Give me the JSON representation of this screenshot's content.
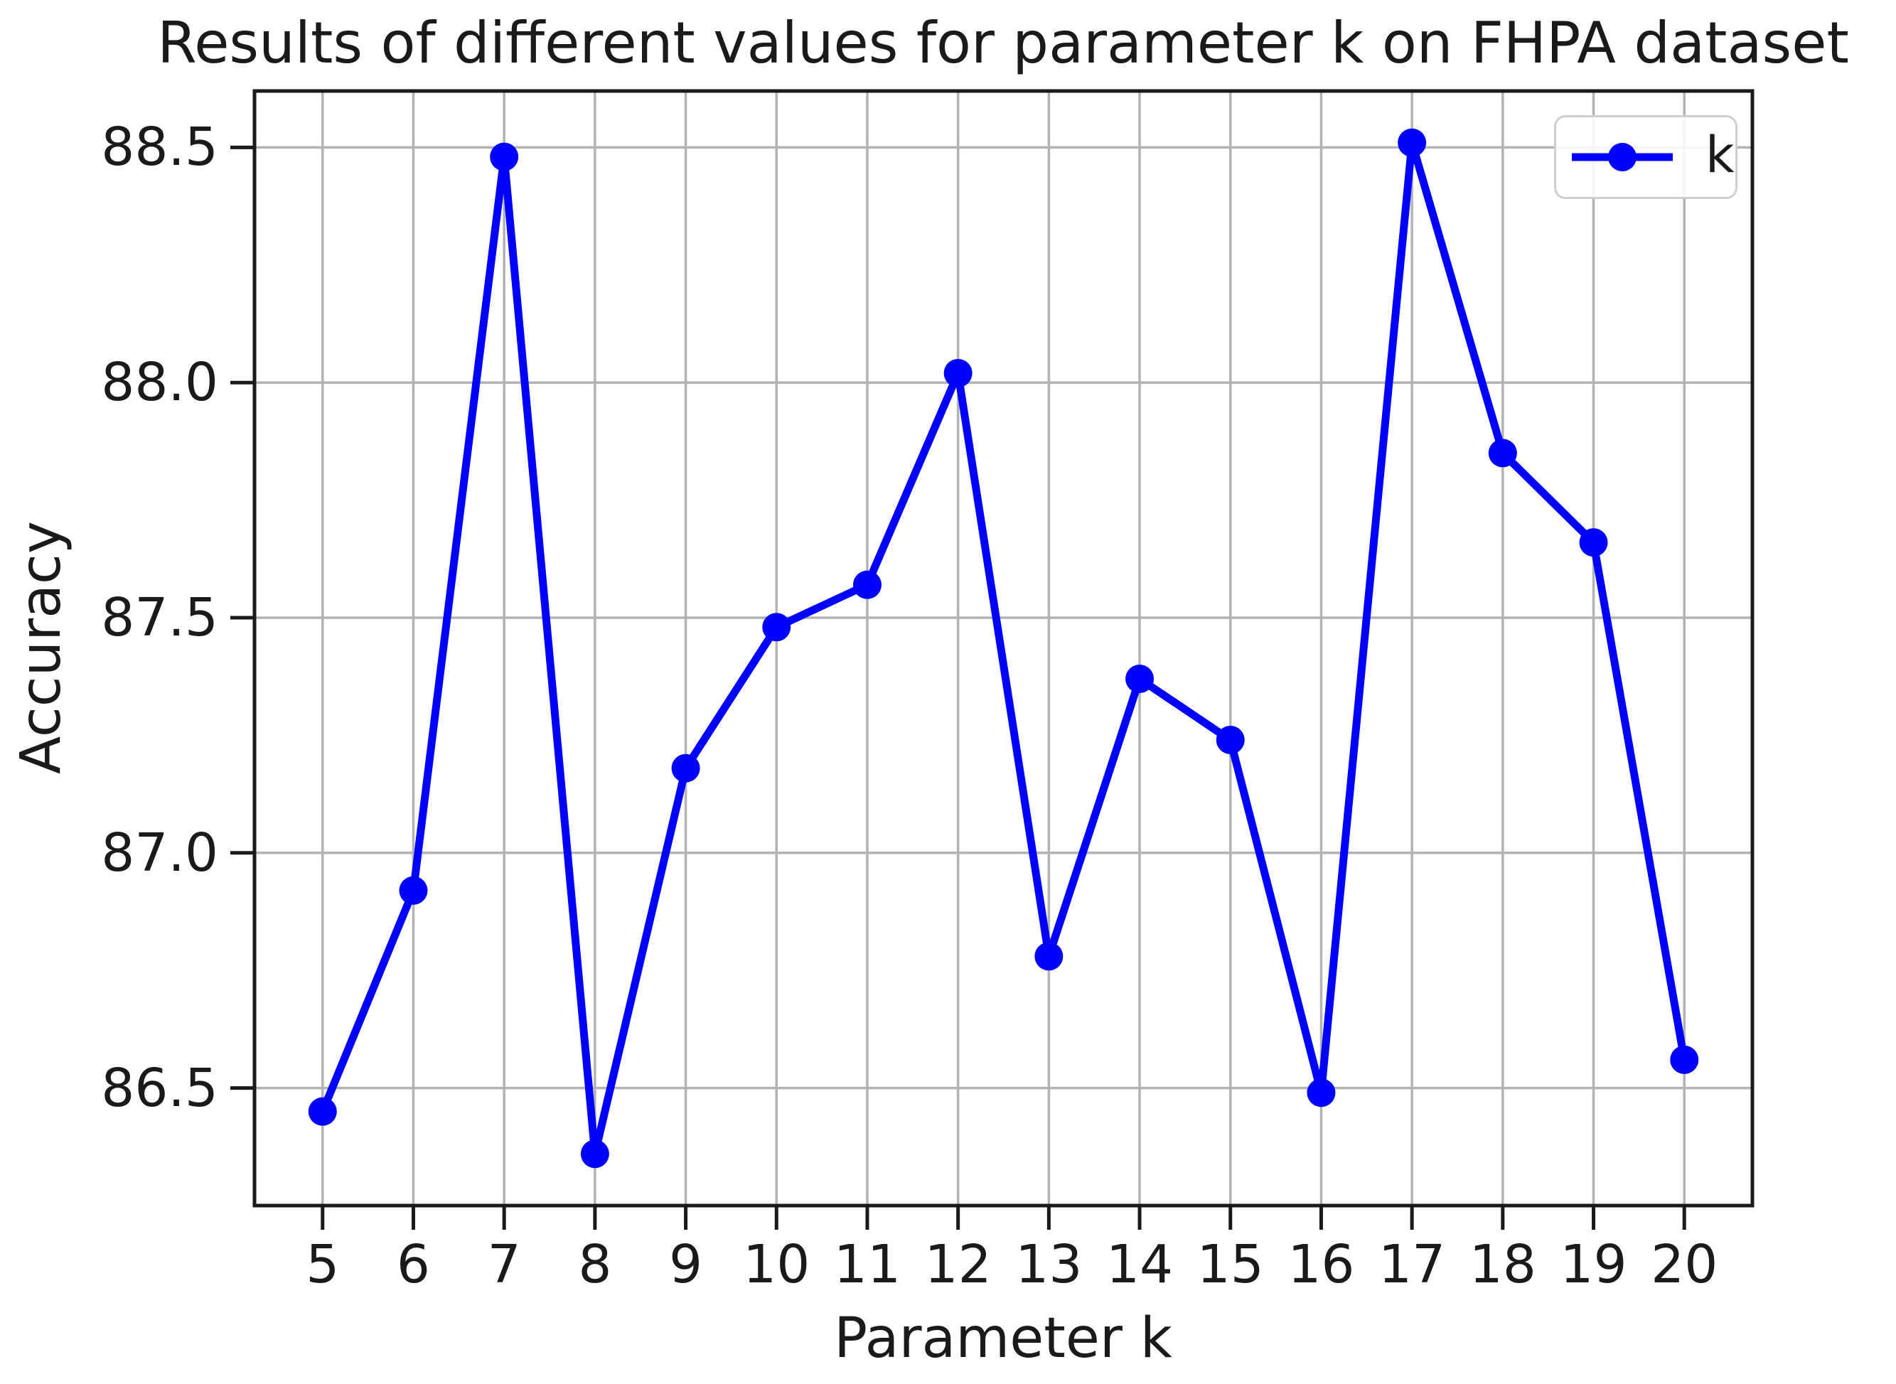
{
  "chart_data": {
    "type": "line",
    "title": "Results of different values for parameter k on FHPA dataset",
    "xlabel": "Parameter k",
    "ylabel": "Accuracy",
    "x": [
      5,
      6,
      7,
      8,
      9,
      10,
      11,
      12,
      13,
      14,
      15,
      16,
      17,
      18,
      19,
      20
    ],
    "series": [
      {
        "name": "k",
        "values": [
          86.45,
          86.92,
          88.48,
          86.36,
          87.18,
          87.48,
          87.57,
          88.02,
          86.78,
          87.37,
          87.24,
          86.49,
          88.51,
          87.85,
          87.66,
          86.56
        ],
        "color": "#0000ff",
        "marker": "circle"
      }
    ],
    "xlim": [
      4.25,
      20.75
    ],
    "ylim": [
      86.25,
      88.62
    ],
    "xticks": [
      5,
      6,
      7,
      8,
      9,
      10,
      11,
      12,
      13,
      14,
      15,
      16,
      17,
      18,
      19,
      20
    ],
    "xtick_labels": [
      "5",
      "6",
      "7",
      "8",
      "9",
      "10",
      "11",
      "12",
      "13",
      "14",
      "15",
      "16",
      "17",
      "18",
      "19",
      "20"
    ],
    "yticks": [
      86.5,
      87.0,
      87.5,
      88.0,
      88.5
    ],
    "ytick_labels": [
      "86.5",
      "87.0",
      "87.5",
      "88.0",
      "88.5"
    ],
    "grid": true,
    "legend": {
      "label": "k",
      "position": "upper right"
    }
  },
  "colors": {
    "line": "#0000ff",
    "grid": "#b3b3b3",
    "spine": "#1a1a1a",
    "text": "#1a1a1a",
    "legend_border": "#cfcfcf",
    "background": "#ffffff"
  }
}
